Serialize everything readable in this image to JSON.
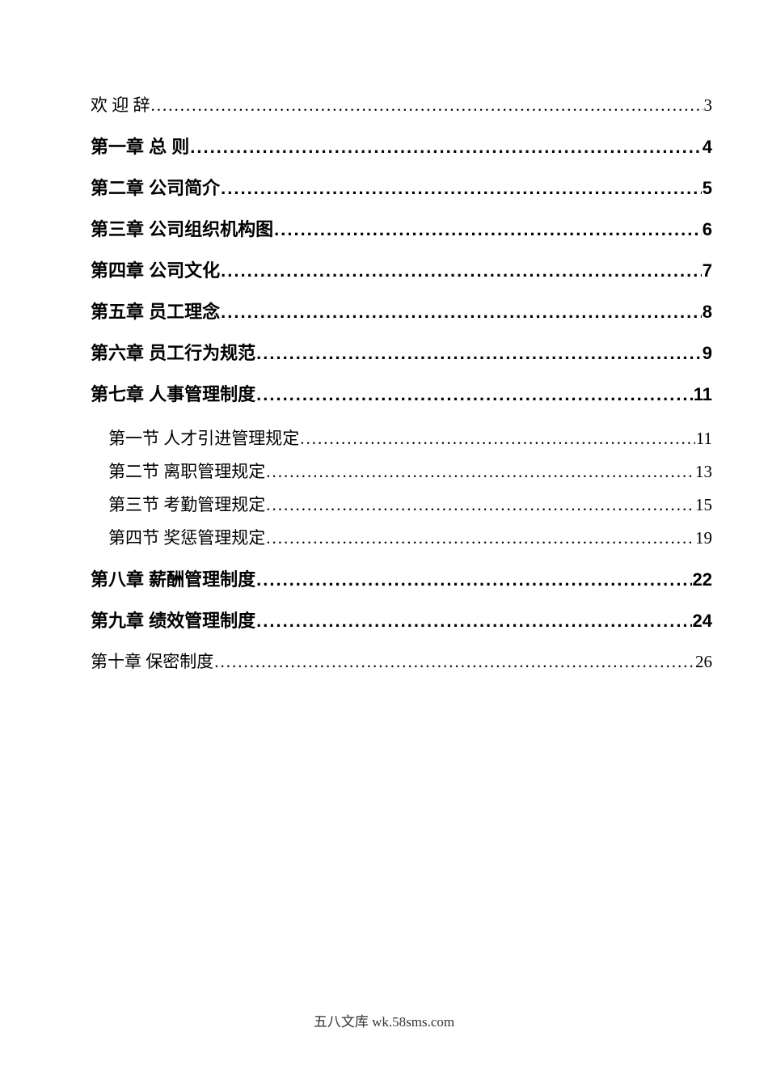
{
  "document": {
    "toc": {
      "entries": [
        {
          "label": "欢 迎 辞",
          "page": "3",
          "level": "plain"
        },
        {
          "label": "第一章 总 则",
          "page": "4",
          "level": "chapter"
        },
        {
          "label": "第二章 公司简介",
          "page": "5",
          "level": "chapter"
        },
        {
          "label": "第三章 公司组织机构图",
          "page": "6",
          "level": "chapter"
        },
        {
          "label": "第四章 公司文化",
          "page": "7",
          "level": "chapter"
        },
        {
          "label": "第五章 员工理念",
          "page": "8",
          "level": "chapter"
        },
        {
          "label": "第六章 员工行为规范",
          "page": "9",
          "level": "chapter"
        },
        {
          "label": "第七章 人事管理制度",
          "page": "11",
          "level": "chapter"
        },
        {
          "label": "第一节 人才引进管理规定",
          "page": "11",
          "level": "section"
        },
        {
          "label": "第二节 离职管理规定",
          "page": "13",
          "level": "section"
        },
        {
          "label": "第三节 考勤管理规定",
          "page": "15",
          "level": "section"
        },
        {
          "label": "第四节 奖惩管理规定",
          "page": "19",
          "level": "section"
        },
        {
          "label": "第八章 薪酬管理制度",
          "page": "22",
          "level": "chapter"
        },
        {
          "label": "第九章 绩效管理制度",
          "page": "24",
          "level": "chapter"
        },
        {
          "label": "第十章 保密制度",
          "page": "26",
          "level": "plain"
        }
      ]
    },
    "footer": {
      "text": "五八文库 wk.58sms.com"
    }
  },
  "colors": {
    "text": "#000000",
    "footer_text": "#333333",
    "page_background": "#ffffff"
  }
}
